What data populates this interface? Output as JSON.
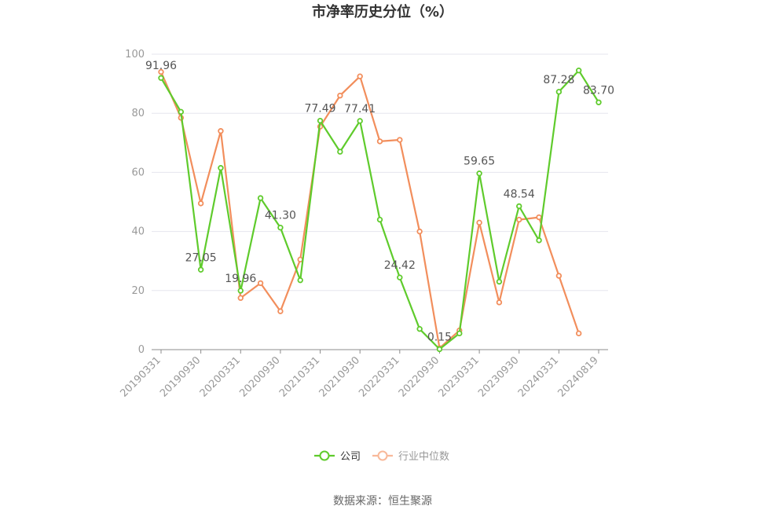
{
  "chart_data": {
    "type": "line",
    "title": "市净率历史分位（%）",
    "ylim": [
      0,
      100
    ],
    "y_ticks": [
      0,
      20,
      40,
      60,
      80,
      100
    ],
    "grid": true,
    "legend_position": "bottom",
    "x": [
      "20190331",
      "20190630",
      "20190930",
      "20191231",
      "20200331",
      "20200630",
      "20200930",
      "20201231",
      "20210331",
      "20210630",
      "20210930",
      "20211231",
      "20220331",
      "20220630",
      "20220930",
      "20221231",
      "20230331",
      "20230630",
      "20230930",
      "20231231",
      "20240331",
      "20240630",
      "20240819"
    ],
    "x_tick_labels": [
      "20190331",
      "20190930",
      "20200331",
      "20200930",
      "20210331",
      "20210930",
      "20220331",
      "20220930",
      "20230331",
      "20230930",
      "20240331",
      "20240819"
    ],
    "series": [
      {
        "name": "公司",
        "color": "#5fcb2c",
        "values": [
          91.96,
          80.5,
          27.05,
          61.5,
          19.96,
          51.3,
          41.3,
          23.5,
          77.49,
          67.0,
          77.41,
          44.0,
          24.42,
          7.0,
          0.15,
          5.5,
          59.65,
          23.0,
          48.54,
          37.0,
          87.28,
          94.5,
          83.7
        ],
        "labels": {
          "0": "91.96",
          "2": "27.05",
          "4": "19.96",
          "6": "41.30",
          "8": "77.49",
          "10": "77.41",
          "12": "24.42",
          "14": "0.15",
          "16": "59.65",
          "18": "48.54",
          "20": "87.28",
          "22": "83.70"
        }
      },
      {
        "name": "行业中位数",
        "color": "#f28e5c",
        "values": [
          94.0,
          78.5,
          49.5,
          74.0,
          17.5,
          22.5,
          13.0,
          30.5,
          75.5,
          86.0,
          92.5,
          70.5,
          71.0,
          40.0,
          0.5,
          6.5,
          43.0,
          16.0,
          44.0,
          44.8,
          25.0,
          5.5,
          null
        ]
      }
    ]
  },
  "source_text": "数据来源：恒生聚源"
}
